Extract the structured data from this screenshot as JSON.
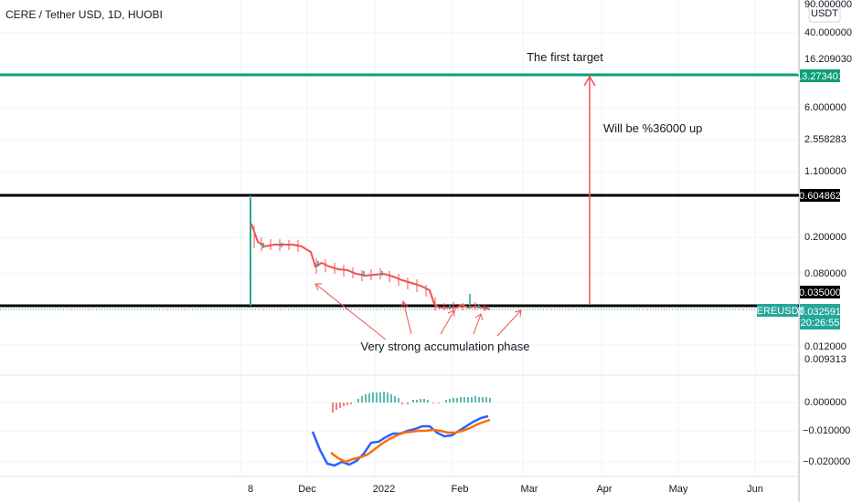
{
  "chart_data": {
    "type": "candlestick",
    "title": "CERE / Tether USD, 1D, HUOBI",
    "currency": "USDT",
    "symbol": "CEREUSDT",
    "last_price": "0.032591",
    "countdown": "20:26:55",
    "scale": "log",
    "price_axis_labels": [
      "90.000000",
      "40.000000",
      "16.209030",
      "6.000000",
      "2.558283",
      "1.100000",
      "0.200000",
      "0.080000",
      "0.012000",
      "0.009313"
    ],
    "time_axis_labels": [
      "8",
      "Dec",
      "2022",
      "Feb",
      "Mar",
      "Apr",
      "May",
      "Jun"
    ],
    "horizontal_levels": [
      {
        "value": "13.273401",
        "color": "#0f9d78"
      },
      {
        "value": "0.604862",
        "color": "#000000"
      },
      {
        "value": "0.035000",
        "color": "#000000"
      }
    ],
    "price_series_approx": [
      {
        "period": "Nov 8",
        "high": 0.604862,
        "close": 0.035
      },
      {
        "period": "mid Nov",
        "close": 0.15
      },
      {
        "period": "Dec",
        "close": 0.12
      },
      {
        "period": "2022",
        "close": 0.08
      },
      {
        "period": "Feb",
        "close": 0.035
      },
      {
        "period": "late Feb",
        "close": 0.032591
      }
    ],
    "annotations": [
      "The first target",
      "Will be %36000 up",
      "Very strong accumulation phase"
    ],
    "indicator": {
      "name": "MACD",
      "axis_labels": [
        "0.000000",
        "−0.010000",
        "−0.020000"
      ],
      "colors": {
        "macd": "#2962ff",
        "signal": "#ff6d00",
        "hist_up": "#26a69a",
        "hist_down": "#ef5350"
      }
    }
  }
}
